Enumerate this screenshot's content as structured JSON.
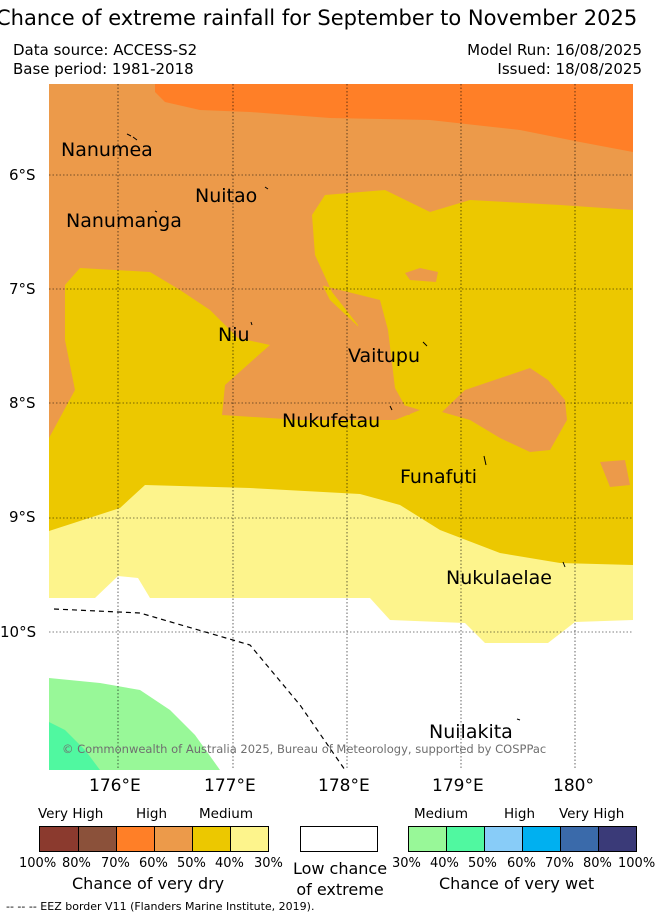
{
  "title": "Chance of extreme rainfall for September to November 2025",
  "header": {
    "data_source": "Data source: ACCESS-S2",
    "base_period": "Base period: 1981-2018",
    "model_run": "Model Run: 16/08/2025",
    "issued": "Issued: 18/08/2025"
  },
  "map": {
    "lat_labels": [
      "6°S",
      "7°S",
      "8°S",
      "9°S",
      "10°S"
    ],
    "lon_labels": [
      "176°E",
      "177°E",
      "178°E",
      "179°E",
      "180°"
    ],
    "islands": [
      "Nanumea",
      "Nuitao",
      "Nanumanga",
      "Niu",
      "Vaitupu",
      "Nukufetau",
      "Funafuti",
      "Nukulaelae",
      "Nuilakita"
    ],
    "copyright": "© Commonwealth of Australia 2025, Bureau of Meteorology, supported by COSPPac",
    "colors": {
      "dry_70_80": "#ff7f27",
      "dry_60_70": "#ec9a4a",
      "dry_50_60_medium": "#ecc800",
      "dry_medium_light": "#fdf48c",
      "wet_30_40": "#98f898",
      "wet_40_50": "#50f8a0"
    }
  },
  "legend_dry": {
    "categories": [
      "Very High",
      "High",
      "Medium"
    ],
    "ticks": [
      "100%",
      "80%",
      "70%",
      "60%",
      "50%",
      "40%",
      "30%"
    ],
    "caption": "Chance of very dry",
    "colors": [
      "#8b3a2e",
      "#8b513a",
      "#ff7f27",
      "#ec9a4a",
      "#ecc800",
      "#fdf48c"
    ]
  },
  "legend_low": {
    "caption_line1": "Low chance",
    "caption_line2": "of extreme"
  },
  "legend_wet": {
    "categories": [
      "Medium",
      "High",
      "Very High"
    ],
    "ticks": [
      "30%",
      "40%",
      "50%",
      "60%",
      "70%",
      "80%",
      "100%"
    ],
    "caption": "Chance of very wet",
    "colors": [
      "#98f898",
      "#50f8a0",
      "#88ccf8",
      "#00b0f0",
      "#3a6aaa",
      "#3a3a78"
    ]
  },
  "footnote": "--  --  -- EEZ border V11 (Flanders Marine Institute, 2019)."
}
